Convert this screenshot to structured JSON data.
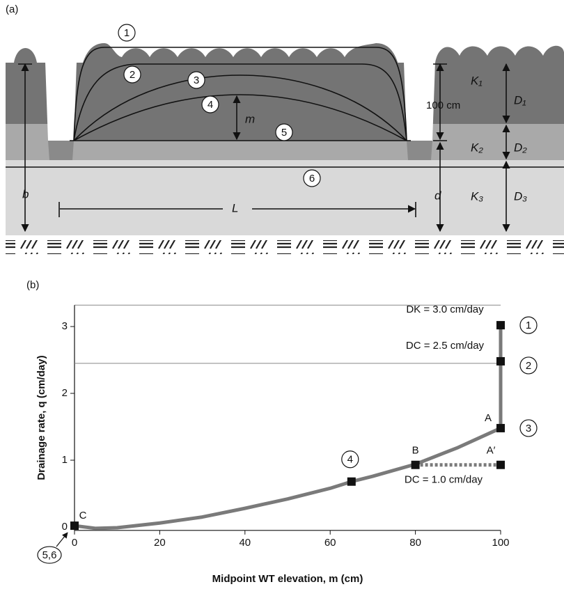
{
  "panel_a": {
    "label": "(a)",
    "circles": [
      "1",
      "2",
      "3",
      "4",
      "5",
      "6"
    ],
    "layers": [
      {
        "k": "K₁",
        "d": "D₁"
      },
      {
        "k": "K₂",
        "d": "D₂"
      },
      {
        "k": "K₃",
        "d": "D₃"
      }
    ],
    "dims": {
      "depth": "100 cm",
      "m": "m",
      "b": "b",
      "d": "d",
      "L": "L"
    }
  },
  "chart_data": {
    "type": "line",
    "label": "(b)",
    "x_label": "Midpoint WT elevation, m (cm)",
    "y_label": "Drainage rate, q (cm/day)",
    "xlim": [
      0,
      100
    ],
    "ylim": [
      -0.05,
      3.32
    ],
    "xticks": [
      0,
      20,
      40,
      60,
      80,
      100
    ],
    "yticks": [
      0,
      1,
      2,
      3
    ],
    "hlines": [
      2.45
    ],
    "series": [
      {
        "color": "#7a7a7a",
        "x": [
          0,
          5,
          10,
          20,
          30,
          40,
          50,
          60,
          65,
          70,
          80,
          90,
          100,
          100,
          100
        ],
        "values": [
          0.02,
          -0.02,
          -0.01,
          0.06,
          0.15,
          0.28,
          0.42,
          0.58,
          0.68,
          0.76,
          0.94,
          1.19,
          1.48,
          2.48,
          3.02
        ]
      },
      {
        "color": "#7a7a7a",
        "style": "dotted",
        "x": [
          80,
          100
        ],
        "values": [
          0.93,
          0.93
        ]
      }
    ],
    "points": [
      {
        "x": 0,
        "y": 0.02,
        "label": "C",
        "circle": "5,6"
      },
      {
        "x": 65,
        "y": 0.68,
        "circle": "4"
      },
      {
        "x": 80,
        "y": 0.93,
        "label": "B"
      },
      {
        "x": 100,
        "y": 1.48,
        "label": "A",
        "circle": "3"
      },
      {
        "x": 100,
        "y": 0.93,
        "label": "A′",
        "note": "DC = 1.0 cm/day"
      },
      {
        "x": 100,
        "y": 2.48,
        "note": "DC = 2.5 cm/day",
        "circle": "2"
      },
      {
        "x": 100,
        "y": 3.02,
        "note": "DK = 3.0 cm/day",
        "circle": "1"
      }
    ]
  }
}
